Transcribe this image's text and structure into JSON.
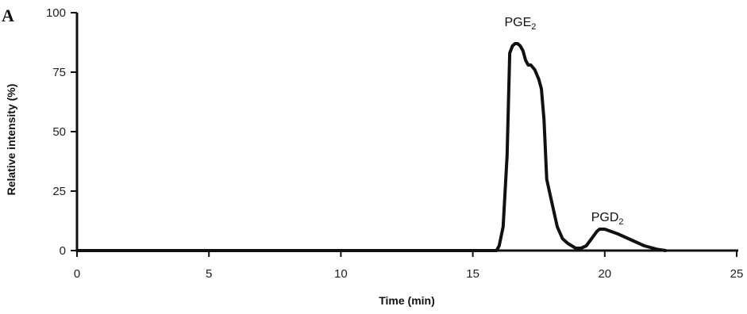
{
  "panel_label": "A",
  "chart_data": {
    "type": "line",
    "xlabel": "Time (min)",
    "ylabel": "Relative intensity (%)",
    "xlim": [
      0,
      25
    ],
    "ylim": [
      0,
      100
    ],
    "x_ticks": [
      0,
      5,
      10,
      15,
      20,
      25
    ],
    "y_ticks": [
      0,
      25,
      50,
      75,
      100
    ],
    "grid": false,
    "series": [
      {
        "x": [
          0,
          15.9,
          16.0,
          16.15,
          16.3,
          16.4,
          16.5,
          16.6,
          16.7,
          16.8,
          16.9,
          17.0,
          17.1,
          17.2,
          17.35,
          17.5,
          17.6,
          17.7,
          17.8,
          18.0,
          18.2,
          18.4,
          18.6,
          18.9,
          19.1,
          19.3,
          19.5,
          19.7,
          19.8,
          20.0,
          20.5,
          21.0,
          21.5,
          22.0,
          22.3
        ],
        "y": [
          0,
          0,
          2,
          10,
          40,
          83,
          86,
          87,
          87,
          86,
          84,
          80,
          78,
          78,
          76,
          72,
          68,
          55,
          30,
          20,
          10,
          5,
          3,
          1,
          1,
          2,
          5,
          8,
          9,
          9,
          7,
          4.5,
          2,
          0.5,
          0
        ]
      }
    ],
    "annotations": [
      {
        "base": "PGE",
        "sub": "2",
        "x": 16.8,
        "y": 87
      },
      {
        "base": "PGD",
        "sub": "2",
        "x": 19.8,
        "y": 9
      }
    ],
    "color": "#111111"
  }
}
